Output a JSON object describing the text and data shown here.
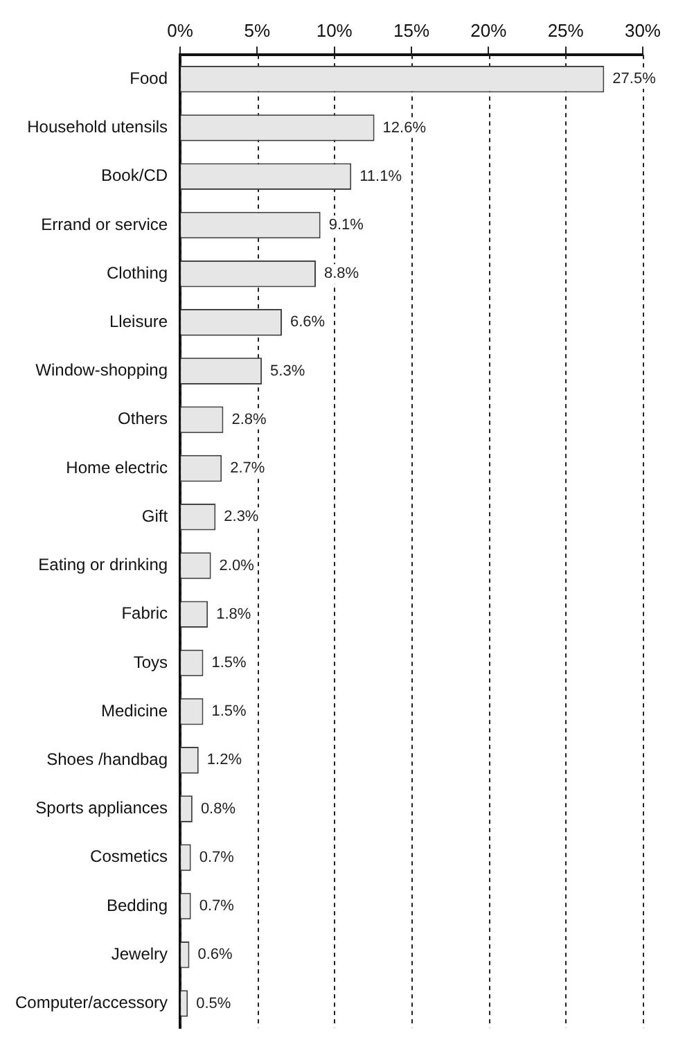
{
  "chart_data": {
    "type": "bar",
    "orientation": "horizontal",
    "categories": [
      "Food",
      "Household utensils",
      "Book/CD",
      "Errand or service",
      "Clothing",
      "Lleisure",
      "Window-shopping",
      "Others",
      "Home electric",
      "Gift",
      "Eating or drinking",
      "Fabric",
      "Toys",
      "Medicine",
      "Shoes /handbag",
      "Sports appliances",
      "Cosmetics",
      "Bedding",
      "Jewelry",
      "Computer/accessory"
    ],
    "values": [
      27.5,
      12.6,
      11.1,
      9.1,
      8.8,
      6.6,
      5.3,
      2.8,
      2.7,
      2.3,
      2.0,
      1.8,
      1.5,
      1.5,
      1.2,
      0.8,
      0.7,
      0.7,
      0.6,
      0.5
    ],
    "value_labels": [
      "27.5%",
      "12.6%",
      "11.1%",
      "9.1%",
      "8.8%",
      "6.6%",
      "5.3%",
      "2.8%",
      "2.7%",
      "2.3%",
      "2.0%",
      "1.8%",
      "1.5%",
      "1.5%",
      "1.2%",
      "0.8%",
      "0.7%",
      "0.7%",
      "0.6%",
      "0.5%"
    ],
    "color": "#e6e6e6",
    "xlim": [
      0,
      30
    ],
    "xticks": [
      {
        "value": 0,
        "label": "0%"
      },
      {
        "value": 5,
        "label": "5%"
      },
      {
        "value": 10,
        "label": "10%"
      },
      {
        "value": 15,
        "label": "15%"
      },
      {
        "value": 20,
        "label": "20%"
      },
      {
        "value": 25,
        "label": "25%"
      },
      {
        "value": 30,
        "label": "30%"
      }
    ],
    "grid": "x",
    "line_style": "dashed",
    "legend": false
  }
}
